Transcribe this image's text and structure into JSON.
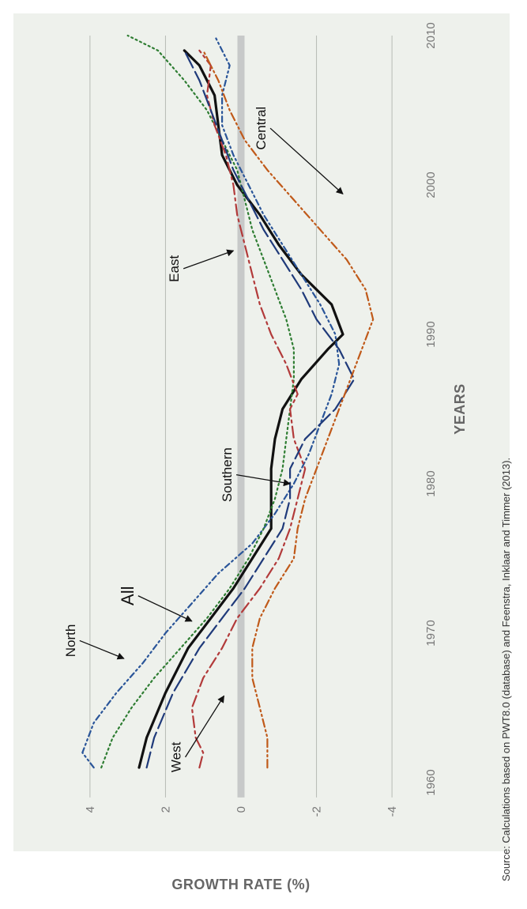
{
  "chart_data": {
    "type": "line",
    "xlabel": "YEARS",
    "ylabel": "GROWTH RATE (%)",
    "xlim": [
      1960,
      2010
    ],
    "ylim": [
      -4.5,
      4.5
    ],
    "x_ticks": [
      "1960",
      "1970",
      "1980",
      "1990",
      "2000",
      "2010"
    ],
    "y_ticks": [
      "4",
      "2",
      "0",
      "-2",
      "-4"
    ],
    "grid": true,
    "zero_line": true,
    "source": "Source: Calculations based on PWT8.0 (database) and Feenstra, Inklaar and Timmer (2013).",
    "series": [
      {
        "name": "All",
        "color": "#111111",
        "style": "solid",
        "points": [
          [
            1961,
            2.7
          ],
          [
            1963,
            2.5
          ],
          [
            1966,
            2.0
          ],
          [
            1969,
            1.4
          ],
          [
            1971,
            0.8
          ],
          [
            1973,
            0.2
          ],
          [
            1975,
            -0.3
          ],
          [
            1977,
            -0.8
          ],
          [
            1979,
            -0.8
          ],
          [
            1981,
            -0.8
          ],
          [
            1983,
            -0.9
          ],
          [
            1985,
            -1.1
          ],
          [
            1987,
            -1.6
          ],
          [
            1989,
            -2.3
          ],
          [
            1990,
            -2.7
          ],
          [
            1992,
            -2.4
          ],
          [
            1994,
            -1.6
          ],
          [
            1996,
            -1.0
          ],
          [
            1998,
            -0.5
          ],
          [
            2000,
            0.1
          ],
          [
            2002,
            0.5
          ],
          [
            2004,
            0.6
          ],
          [
            2006,
            0.7
          ],
          [
            2008,
            1.1
          ],
          [
            2009,
            1.5
          ]
        ]
      },
      {
        "name": "North",
        "color": "#2a5599",
        "style": "dash-dot-dot",
        "points": [
          [
            1961,
            3.9
          ],
          [
            1962,
            4.2
          ],
          [
            1964,
            3.9
          ],
          [
            1966,
            3.3
          ],
          [
            1968,
            2.6
          ],
          [
            1970,
            2.0
          ],
          [
            1972,
            1.3
          ],
          [
            1974,
            0.6
          ],
          [
            1976,
            -0.3
          ],
          [
            1978,
            -0.9
          ],
          [
            1980,
            -1.4
          ],
          [
            1982,
            -1.8
          ],
          [
            1984,
            -2.1
          ],
          [
            1986,
            -2.4
          ],
          [
            1988,
            -2.6
          ],
          [
            1990,
            -2.5
          ],
          [
            1992,
            -2.1
          ],
          [
            1994,
            -1.6
          ],
          [
            1996,
            -1.1
          ],
          [
            1998,
            -0.6
          ],
          [
            2000,
            -0.2
          ],
          [
            2002,
            0.2
          ],
          [
            2004,
            0.5
          ],
          [
            2006,
            0.5
          ],
          [
            2008,
            0.3
          ],
          [
            2010,
            0.7
          ]
        ]
      },
      {
        "name": "Southern",
        "color": "#2e7d32",
        "style": "dotted",
        "points": [
          [
            1961,
            3.7
          ],
          [
            1963,
            3.4
          ],
          [
            1965,
            2.9
          ],
          [
            1967,
            2.3
          ],
          [
            1969,
            1.6
          ],
          [
            1971,
            0.9
          ],
          [
            1973,
            0.3
          ],
          [
            1975,
            -0.2
          ],
          [
            1977,
            -0.6
          ],
          [
            1979,
            -0.9
          ],
          [
            1981,
            -1.1
          ],
          [
            1983,
            -1.2
          ],
          [
            1985,
            -1.3
          ],
          [
            1987,
            -1.4
          ],
          [
            1989,
            -1.4
          ],
          [
            1991,
            -1.2
          ],
          [
            1993,
            -0.9
          ],
          [
            1995,
            -0.6
          ],
          [
            1997,
            -0.3
          ],
          [
            1999,
            -0.1
          ],
          [
            2001,
            0.1
          ],
          [
            2003,
            0.5
          ],
          [
            2005,
            0.9
          ],
          [
            2007,
            1.5
          ],
          [
            2009,
            2.2
          ],
          [
            2010,
            3.0
          ]
        ]
      },
      {
        "name": "East",
        "color": "#b23a3a",
        "style": "dash",
        "points": [
          [
            1961,
            1.1
          ],
          [
            1962,
            1.0
          ],
          [
            1963,
            1.2
          ],
          [
            1965,
            1.3
          ],
          [
            1967,
            1.0
          ],
          [
            1969,
            0.5
          ],
          [
            1971,
            0.1
          ],
          [
            1973,
            -0.5
          ],
          [
            1975,
            -1.0
          ],
          [
            1977,
            -1.3
          ],
          [
            1979,
            -1.5
          ],
          [
            1981,
            -1.7
          ],
          [
            1983,
            -1.4
          ],
          [
            1985,
            -1.3
          ],
          [
            1986,
            -1.5
          ],
          [
            1988,
            -1.2
          ],
          [
            1990,
            -0.8
          ],
          [
            1992,
            -0.5
          ],
          [
            1994,
            -0.3
          ],
          [
            1996,
            -0.1
          ],
          [
            1998,
            0.1
          ],
          [
            2000,
            0.2
          ],
          [
            2002,
            0.4
          ],
          [
            2004,
            0.7
          ],
          [
            2006,
            0.9
          ],
          [
            2008,
            0.8
          ],
          [
            2009,
            1.1
          ]
        ]
      },
      {
        "name": "West",
        "color": "#1f3a7a",
        "style": "dash-long",
        "points": [
          [
            1961,
            2.5
          ],
          [
            1963,
            2.3
          ],
          [
            1966,
            1.8
          ],
          [
            1969,
            1.1
          ],
          [
            1971,
            0.5
          ],
          [
            1973,
            -0.1
          ],
          [
            1975,
            -0.6
          ],
          [
            1977,
            -1.1
          ],
          [
            1979,
            -1.3
          ],
          [
            1981,
            -1.3
          ],
          [
            1983,
            -1.7
          ],
          [
            1985,
            -2.5
          ],
          [
            1987,
            -3.0
          ],
          [
            1989,
            -2.6
          ],
          [
            1991,
            -2.0
          ],
          [
            1993,
            -1.6
          ],
          [
            1995,
            -1.1
          ],
          [
            1997,
            -0.6
          ],
          [
            1999,
            -0.2
          ],
          [
            2001,
            0.2
          ],
          [
            2003,
            0.5
          ],
          [
            2005,
            0.8
          ],
          [
            2007,
            1.1
          ],
          [
            2009,
            1.5
          ]
        ]
      },
      {
        "name": "Central",
        "color": "#c05a1a",
        "style": "dash-dot",
        "points": [
          [
            1961,
            -0.7
          ],
          [
            1963,
            -0.7
          ],
          [
            1965,
            -0.5
          ],
          [
            1967,
            -0.3
          ],
          [
            1969,
            -0.3
          ],
          [
            1971,
            -0.5
          ],
          [
            1973,
            -0.9
          ],
          [
            1975,
            -1.4
          ],
          [
            1977,
            -1.5
          ],
          [
            1979,
            -1.7
          ],
          [
            1981,
            -2.0
          ],
          [
            1983,
            -2.3
          ],
          [
            1985,
            -2.6
          ],
          [
            1987,
            -2.9
          ],
          [
            1989,
            -3.2
          ],
          [
            1991,
            -3.5
          ],
          [
            1993,
            -3.3
          ],
          [
            1995,
            -2.8
          ],
          [
            1997,
            -2.1
          ],
          [
            1999,
            -1.4
          ],
          [
            2001,
            -0.7
          ],
          [
            2003,
            -0.1
          ],
          [
            2005,
            0.3
          ],
          [
            2007,
            0.6
          ],
          [
            2009,
            1.0
          ]
        ]
      }
    ],
    "annotations": [
      {
        "text": "All",
        "big": true
      },
      {
        "text": "North",
        "big": false
      },
      {
        "text": "Southern",
        "big": false
      },
      {
        "text": "East",
        "big": false
      },
      {
        "text": "West",
        "big": false
      },
      {
        "text": "Central",
        "big": false
      }
    ]
  }
}
